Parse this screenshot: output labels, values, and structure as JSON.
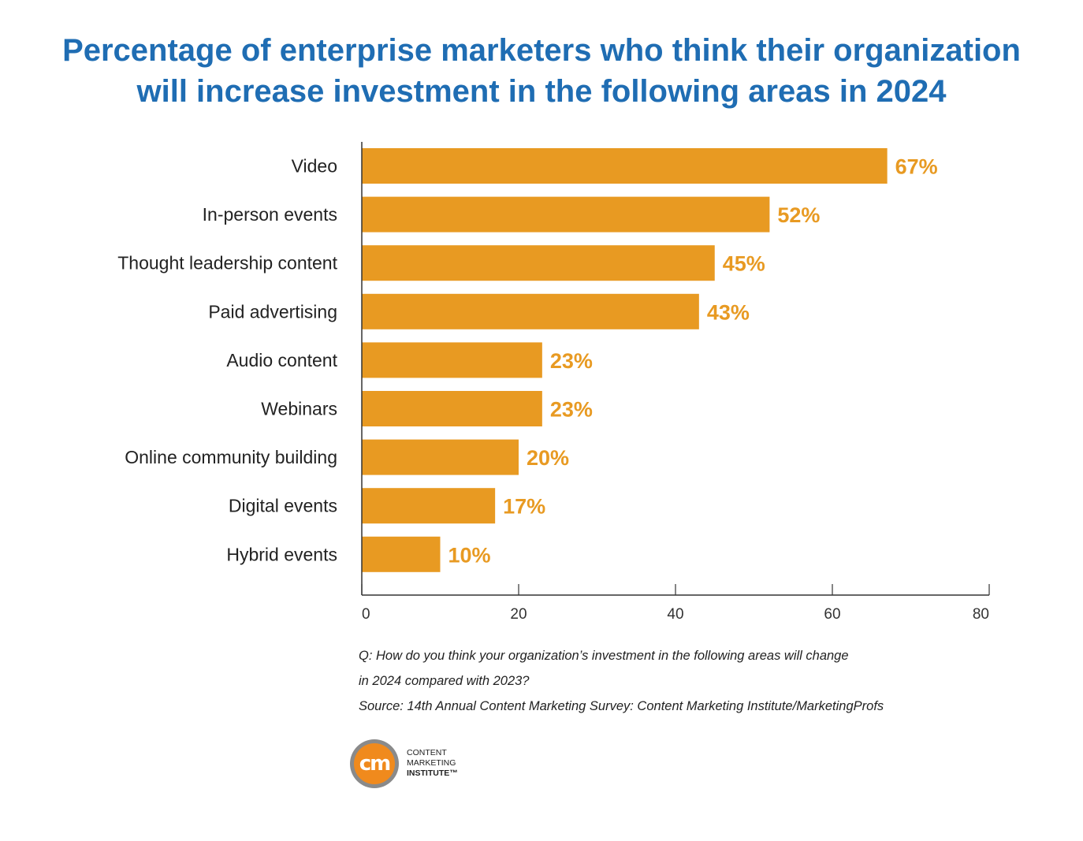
{
  "title_lines": [
    "Percentage of enterprise marketers who think their organization",
    "will increase investment in the following areas in 2024"
  ],
  "chart_data": {
    "type": "bar",
    "orientation": "horizontal",
    "categories": [
      "Video",
      "In-person events",
      "Thought leadership content",
      "Paid advertising",
      "Audio content",
      "Webinars",
      "Online community building",
      "Digital events",
      "Hybrid events"
    ],
    "values": [
      67,
      52,
      45,
      43,
      23,
      23,
      20,
      17,
      10
    ],
    "value_labels": [
      "67%",
      "52%",
      "45%",
      "43%",
      "23%",
      "23%",
      "20%",
      "17%",
      "10%"
    ],
    "xlim": [
      0,
      80
    ],
    "xticks": [
      0,
      20,
      40,
      60,
      80
    ],
    "grid": false,
    "bar_color": "#e89a22",
    "value_label_color": "#e89a22"
  },
  "notes": [
    "Q: How do you think your organization’s investment in the following areas will change",
    "in 2024 compared with 2023?",
    "Source: 14th Annual Content Marketing Survey: Content Marketing Institute/MarketingProfs"
  ],
  "logo": {
    "mark": "cm",
    "lines": [
      "CONTENT",
      "MARKETING",
      "INSTITUTE™"
    ]
  }
}
